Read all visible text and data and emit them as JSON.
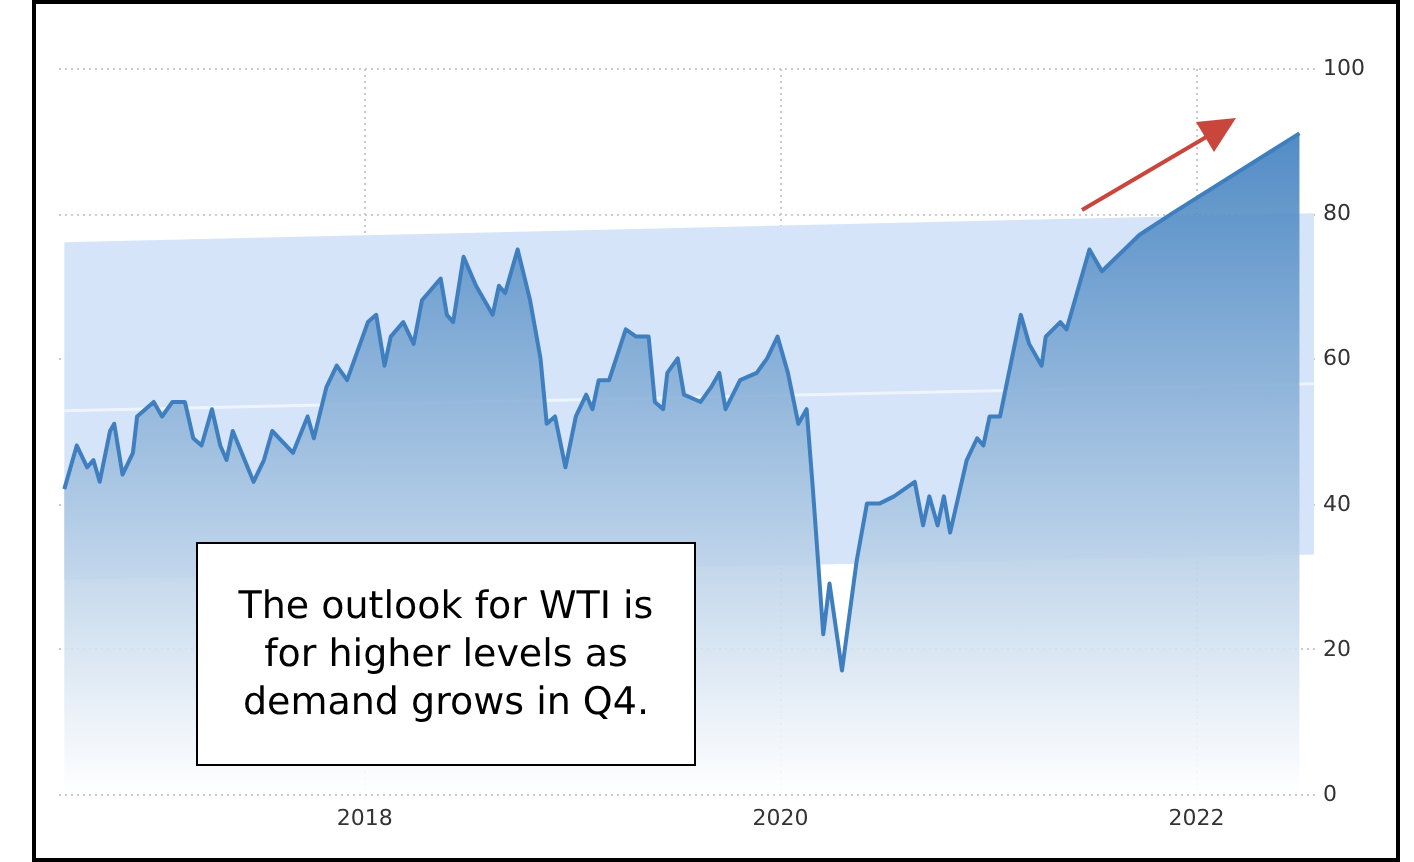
{
  "chart_data": {
    "type": "area",
    "annotations": [
      "The outlook for WTI is for higher levels as demand grows in Q4."
    ],
    "xlim": [
      2016.52,
      2022.57
    ],
    "xticks": [
      2018,
      2020,
      2022
    ],
    "ylim": [
      0,
      100
    ],
    "yticks": [
      0,
      20,
      40,
      60,
      80,
      100
    ],
    "grid": true,
    "series": [
      {
        "color": "#3f7fbf",
        "x": [
          2016.56,
          2016.62,
          2016.67,
          2016.7,
          2016.73,
          2016.78,
          2016.8,
          2016.84,
          2016.89,
          2016.91,
          2016.99,
          2017.03,
          2017.08,
          2017.14,
          2017.18,
          2017.22,
          2017.27,
          2017.31,
          2017.34,
          2017.37,
          2017.47,
          2017.52,
          2017.56,
          2017.66,
          2017.73,
          2017.76,
          2017.82,
          2017.87,
          2017.92,
          2018.02,
          2018.06,
          2018.1,
          2018.13,
          2018.19,
          2018.24,
          2018.28,
          2018.37,
          2018.4,
          2018.43,
          2018.48,
          2018.54,
          2018.62,
          2018.65,
          2018.68,
          2018.74,
          2018.8,
          2018.85,
          2018.88,
          2018.92,
          2018.97,
          2019.02,
          2019.07,
          2019.1,
          2019.13,
          2019.18,
          2019.26,
          2019.31,
          2019.37,
          2019.4,
          2019.44,
          2019.46,
          2019.51,
          2019.54,
          2019.62,
          2019.67,
          2019.71,
          2019.74,
          2019.81,
          2019.89,
          2019.94,
          2019.99,
          2020.04,
          2020.09,
          2020.13,
          2020.16,
          2020.21,
          2020.24,
          2020.3,
          2020.37,
          2020.42,
          2020.48,
          2020.55,
          2020.65,
          2020.69,
          2020.72,
          2020.76,
          2020.79,
          2020.82,
          2020.9,
          2020.95,
          2020.98,
          2021.01,
          2021.06,
          2021.11,
          2021.16,
          2021.2,
          2021.26,
          2021.28,
          2021.35,
          2021.38,
          2021.43,
          2021.49,
          2021.55,
          2021.73,
          2021.89,
          2022.5
        ],
        "values": [
          42,
          48,
          45,
          46,
          43,
          50,
          51,
          44,
          47,
          52,
          54,
          52,
          54,
          54,
          49,
          48,
          53,
          48,
          46,
          50,
          43,
          46,
          50,
          47,
          52,
          49,
          56,
          59,
          57,
          65,
          66,
          59,
          63,
          65,
          62,
          68,
          71,
          66,
          65,
          74,
          70,
          66,
          70,
          69,
          75,
          68,
          60,
          51,
          52,
          45,
          52,
          55,
          53,
          57,
          57,
          64,
          63,
          63,
          54,
          53,
          58,
          60,
          55,
          54,
          56,
          58,
          53,
          57,
          58,
          60,
          63,
          58,
          51,
          53,
          42,
          22,
          29,
          17,
          32,
          40,
          40,
          41,
          43,
          37,
          41,
          37,
          41,
          36,
          46,
          49,
          48,
          52,
          52,
          59,
          66,
          62,
          59,
          63,
          65,
          64,
          69,
          75,
          72,
          77,
          80,
          91
        ]
      },
      {
        "type": "line",
        "color": "#ffffff",
        "x": [
          2016.56,
          2022.57
        ],
        "values": [
          52.8,
          56.5
        ],
        "lower": [
          29.5,
          33
        ],
        "upper": [
          76,
          80
        ]
      }
    ]
  }
}
